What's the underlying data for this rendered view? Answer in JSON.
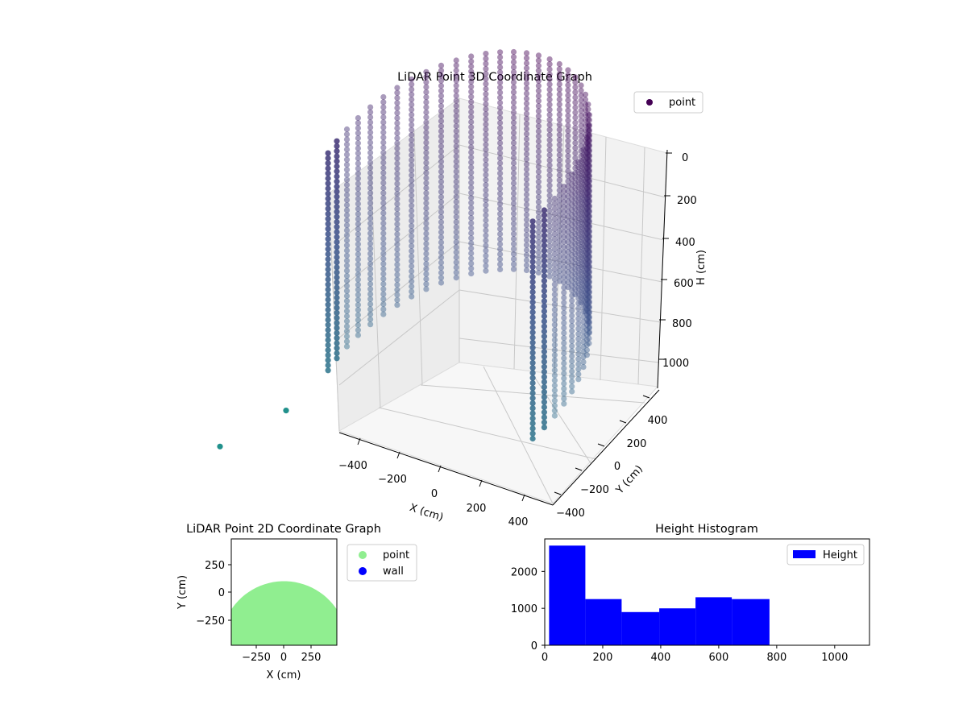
{
  "chart_data": [
    {
      "type": "scatter3d",
      "title": "LiDAR Point 3D Coordinate Graph",
      "xlabel": "X (cm)",
      "ylabel": "Y (cm)",
      "zlabel": "H (cm)",
      "xticks": [
        "−400",
        "−200",
        "0",
        "200",
        "400"
      ],
      "yticks": [
        "−400",
        "−200",
        "0",
        "200",
        "400"
      ],
      "zticks": [
        "0",
        "200",
        "400",
        "600",
        "800",
        "1000"
      ],
      "xlim": [
        -480,
        480
      ],
      "ylim": [
        -480,
        480
      ],
      "zlim": [
        0,
        1100
      ],
      "z_inverted": true,
      "grid": true,
      "colormap": "viridis",
      "colormap_colors": [
        "#440154",
        "#3b528b",
        "#21918c"
      ],
      "legend": {
        "position": "top-right",
        "entries": [
          {
            "label": "point",
            "color": "#440154"
          }
        ]
      },
      "description_geometry": {
        "shape": "semicircular wall of vertical point columns",
        "radius": 430,
        "theta_range_deg": [
          -10,
          190
        ],
        "columns": 34,
        "height_min": 60,
        "height_max": 1020,
        "outliers": [
          {
            "x": -520,
            "y": -450,
            "h": 950
          },
          {
            "x": -480,
            "y": -200,
            "h": 1060
          }
        ]
      }
    },
    {
      "type": "scatter",
      "title": "LiDAR Point 2D Coordinate Graph",
      "xlabel": "X (cm)",
      "ylabel": "Y (cm)",
      "xticks": [
        "−250",
        "0",
        "250"
      ],
      "yticks": [
        "250",
        "0",
        "−250"
      ],
      "xlim": [
        -480,
        480
      ],
      "ylim": [
        -480,
        480
      ],
      "legend": {
        "position": "outside-right",
        "entries": [
          {
            "label": "point",
            "color": "#90ee90"
          },
          {
            "label": "wall",
            "color": "#0000ff"
          }
        ]
      },
      "region": {
        "center": [
          0,
          -480
        ],
        "radius": 575,
        "color": "#90ee90"
      }
    },
    {
      "type": "bar",
      "title": "Height Histogram",
      "xlabel": "",
      "ylabel": "",
      "xticks": [
        "0",
        "200",
        "400",
        "600",
        "800",
        "1000"
      ],
      "yticks": [
        "0",
        "1000",
        "2000"
      ],
      "xlim": [
        0,
        1120
      ],
      "ylim": [
        0,
        2880
      ],
      "color": "#0000ff",
      "legend": {
        "position": "top-right",
        "entries": [
          {
            "label": "Height",
            "color": "#0000ff"
          }
        ]
      },
      "bins": [
        {
          "x0": 15,
          "x1": 140,
          "value": 2700
        },
        {
          "x0": 140,
          "x1": 265,
          "value": 1250
        },
        {
          "x0": 265,
          "x1": 395,
          "value": 900
        },
        {
          "x0": 395,
          "x1": 520,
          "value": 1000
        },
        {
          "x0": 520,
          "x1": 645,
          "value": 1300
        },
        {
          "x0": 645,
          "x1": 775,
          "value": 1250
        }
      ]
    }
  ]
}
